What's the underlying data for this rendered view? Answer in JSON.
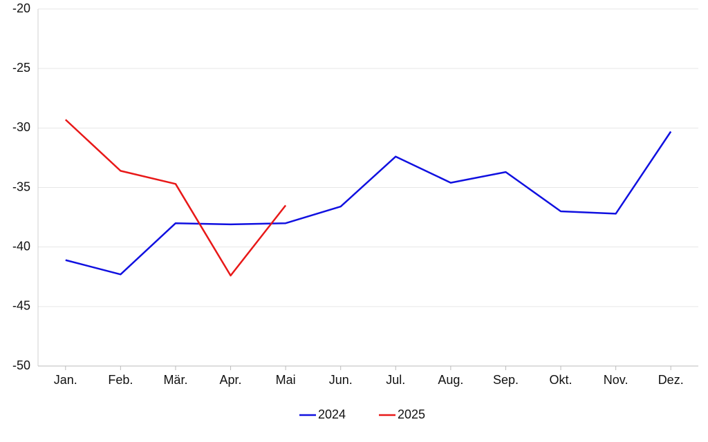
{
  "chart_data": {
    "type": "line",
    "categories": [
      "Jan.",
      "Feb.",
      "Mär.",
      "Apr.",
      "Mai",
      "Jun.",
      "Jul.",
      "Aug.",
      "Sep.",
      "Okt.",
      "Nov.",
      "Dez."
    ],
    "series": [
      {
        "name": "2024",
        "color": "#1010e0",
        "values": [
          -41.1,
          -42.3,
          -38.0,
          -38.1,
          -38.0,
          -36.6,
          -32.4,
          -34.6,
          -33.7,
          -37.0,
          -37.2,
          -30.3
        ]
      },
      {
        "name": "2025",
        "color": "#e81818",
        "values": [
          -29.3,
          -33.6,
          -34.7,
          -42.4,
          -36.5,
          null,
          null,
          null,
          null,
          null,
          null,
          null
        ]
      }
    ],
    "ylim": [
      -50,
      -20
    ],
    "yticks": [
      -50,
      -45,
      -40,
      -35,
      -30,
      -25,
      -20
    ],
    "grid": true,
    "legend": "bottom"
  }
}
